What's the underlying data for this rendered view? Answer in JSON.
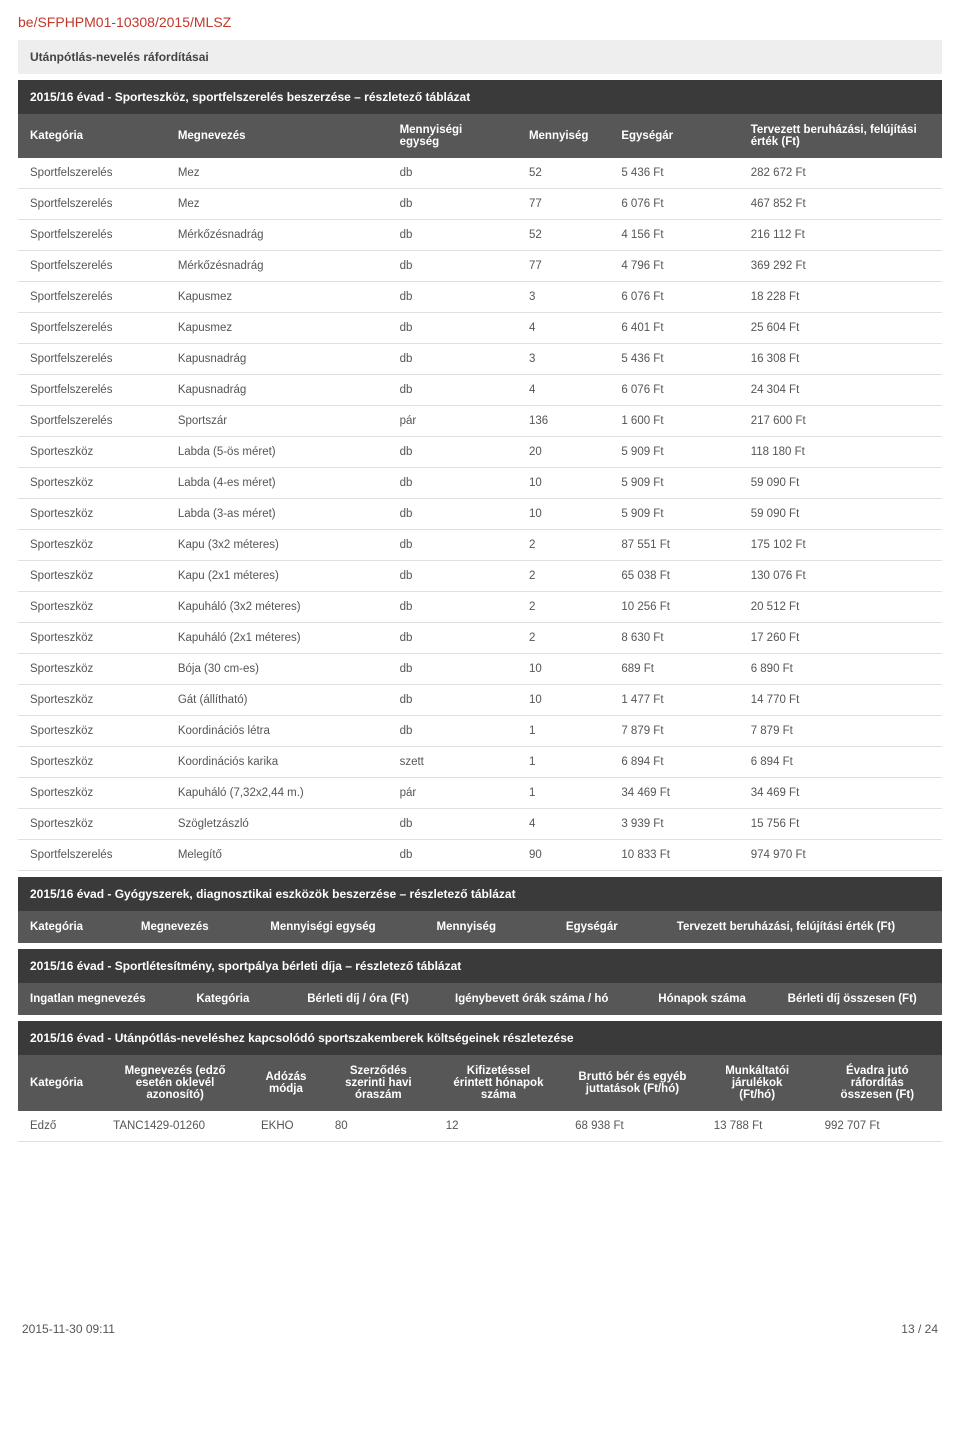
{
  "doc_ref": "be/SFPHPM01-10308/2015/MLSZ",
  "section_title": "Utánpótlás-nevelés ráfordításai",
  "table1": {
    "title": "2015/16 évad - Sporteszköz, sportfelszerelés beszerzése – részletező táblázat",
    "columns": [
      "Kategória",
      "Megnevezés",
      "Mennyiségi egység",
      "Mennyiség",
      "Egységár",
      "Tervezett beruházási, felújítási érték (Ft)"
    ],
    "col_widths": [
      "16%",
      "24%",
      "14%",
      "10%",
      "14%",
      "22%"
    ],
    "rows": [
      [
        "Sportfelszerelés",
        "Mez",
        "db",
        "52",
        "5 436 Ft",
        "282 672 Ft"
      ],
      [
        "Sportfelszerelés",
        "Mez",
        "db",
        "77",
        "6 076 Ft",
        "467 852 Ft"
      ],
      [
        "Sportfelszerelés",
        "Mérkőzésnadrág",
        "db",
        "52",
        "4 156 Ft",
        "216 112 Ft"
      ],
      [
        "Sportfelszerelés",
        "Mérkőzésnadrág",
        "db",
        "77",
        "4 796 Ft",
        "369 292 Ft"
      ],
      [
        "Sportfelszerelés",
        "Kapusmez",
        "db",
        "3",
        "6 076 Ft",
        "18 228 Ft"
      ],
      [
        "Sportfelszerelés",
        "Kapusmez",
        "db",
        "4",
        "6 401 Ft",
        "25 604 Ft"
      ],
      [
        "Sportfelszerelés",
        "Kapusnadrág",
        "db",
        "3",
        "5 436 Ft",
        "16 308 Ft"
      ],
      [
        "Sportfelszerelés",
        "Kapusnadrág",
        "db",
        "4",
        "6 076 Ft",
        "24 304 Ft"
      ],
      [
        "Sportfelszerelés",
        "Sportszár",
        "pár",
        "136",
        "1 600 Ft",
        "217 600 Ft"
      ],
      [
        "Sporteszköz",
        "Labda (5-ös méret)",
        "db",
        "20",
        "5 909 Ft",
        "118 180 Ft"
      ],
      [
        "Sporteszköz",
        "Labda (4-es méret)",
        "db",
        "10",
        "5 909 Ft",
        "59 090 Ft"
      ],
      [
        "Sporteszköz",
        "Labda (3-as méret)",
        "db",
        "10",
        "5 909 Ft",
        "59 090 Ft"
      ],
      [
        "Sporteszköz",
        "Kapu (3x2 méteres)",
        "db",
        "2",
        "87 551 Ft",
        "175 102 Ft"
      ],
      [
        "Sporteszköz",
        "Kapu (2x1 méteres)",
        "db",
        "2",
        "65 038 Ft",
        "130 076 Ft"
      ],
      [
        "Sporteszköz",
        "Kapuháló (3x2 méteres)",
        "db",
        "2",
        "10 256 Ft",
        "20 512 Ft"
      ],
      [
        "Sporteszköz",
        "Kapuháló (2x1 méteres)",
        "db",
        "2",
        "8 630 Ft",
        "17 260 Ft"
      ],
      [
        "Sporteszköz",
        "Bója (30 cm-es)",
        "db",
        "10",
        "689 Ft",
        "6 890 Ft"
      ],
      [
        "Sporteszköz",
        "Gát (állítható)",
        "db",
        "10",
        "1 477 Ft",
        "14 770 Ft"
      ],
      [
        "Sporteszköz",
        "Koordinációs létra",
        "db",
        "1",
        "7 879 Ft",
        "7 879 Ft"
      ],
      [
        "Sporteszköz",
        "Koordinációs karika",
        "szett",
        "1",
        "6 894 Ft",
        "6 894 Ft"
      ],
      [
        "Sporteszköz",
        "Kapuháló (7,32x2,44 m.)",
        "pár",
        "1",
        "34 469 Ft",
        "34 469 Ft"
      ],
      [
        "Sporteszköz",
        "Szögletzászló",
        "db",
        "4",
        "3 939 Ft",
        "15 756 Ft"
      ],
      [
        "Sportfelszerelés",
        "Melegítő",
        "db",
        "90",
        "10 833 Ft",
        "974 970 Ft"
      ]
    ]
  },
  "table2": {
    "title": "2015/16 évad - Gyógyszerek, diagnosztikai eszközök beszerzése – részletező táblázat",
    "columns": [
      "Kategória",
      "Megnevezés",
      "Mennyiségi egység",
      "Mennyiség",
      "Egységár",
      "Tervezett beruházási, felújítási érték (Ft)"
    ],
    "col_widths": [
      "12%",
      "14%",
      "18%",
      "14%",
      "12%",
      "30%"
    ],
    "rows": []
  },
  "table3": {
    "title": "2015/16 évad - Sportlétesítmény, sportpálya bérleti díja – részletező táblázat",
    "columns": [
      "Ingatlan megnevezés",
      "Kategória",
      "Bérleti díj / óra (Ft)",
      "Igénybevett órák száma / hó",
      "Hónapok száma",
      "Bérleti díj összesen (Ft)"
    ],
    "col_widths": [
      "18%",
      "12%",
      "16%",
      "22%",
      "14%",
      "18%"
    ],
    "rows": []
  },
  "table4": {
    "title": "2015/16 évad - Utánpótlás-neveléshez kapcsolódó sportszakemberek költségeinek részletezése",
    "columns": [
      "Kategória",
      "Megnevezés (edző esetén oklevél azonosító)",
      "Adózás módja",
      "Szerződés szerinti havi óraszám",
      "Kifizetéssel érintett hónapok száma",
      "Bruttó bér és egyéb juttatások (Ft/hó)",
      "Munkáltatói járulékok (Ft/hó)",
      "Évadra jutó ráfordítás összesen (Ft)"
    ],
    "col_widths": [
      "9%",
      "16%",
      "8%",
      "12%",
      "14%",
      "15%",
      "12%",
      "14%"
    ],
    "header_align": [
      "left",
      "center",
      "center",
      "center",
      "center",
      "center",
      "center",
      "center"
    ],
    "rows": [
      [
        "Edző",
        "TANC1429-01260",
        "EKHO",
        "80",
        "12",
        "68 938 Ft",
        "13 788 Ft",
        "992 707 Ft"
      ]
    ]
  },
  "footer": {
    "timestamp": "2015-11-30 09:11",
    "page": "13 / 24"
  },
  "colors": {
    "doc_ref": "#c0392b",
    "section_light_bg": "#eeeeee",
    "section_dark_bg": "#3a3a3a",
    "header_row_bg": "#575757",
    "text": "#333333",
    "cell_text": "#555555",
    "row_border": "#e0e0e0",
    "white": "#ffffff"
  }
}
